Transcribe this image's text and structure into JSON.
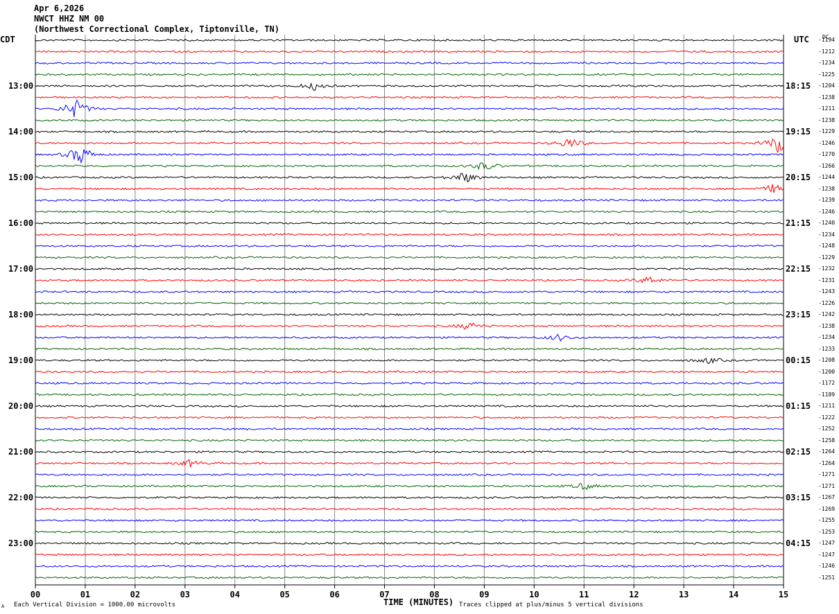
{
  "header": {
    "date": "Apr 6,2026",
    "station": "NWCT HHZ NM 00",
    "location": "(Northwest Correctional Complex, Tiptonville, TN)"
  },
  "left_axis_title": "CDT",
  "right_axis_title": "UTC",
  "dc_title": "DC",
  "footer": {
    "scale_note": "Each Vertical Division = 1000.00 microvolts",
    "clip_note": "Traces clipped at plus/minus 5 vertical divisions",
    "corner_mark": "A"
  },
  "colors": {
    "trace_cycle": [
      "#000000",
      "#ff0000",
      "#0000ff",
      "#006400"
    ],
    "grid": "#888888"
  },
  "chart_data": {
    "type": "line",
    "xlabel": "TIME (MINUTES)",
    "x_ticks": [
      "00",
      "01",
      "02",
      "03",
      "04",
      "05",
      "06",
      "07",
      "08",
      "09",
      "10",
      "11",
      "12",
      "13",
      "14",
      "15"
    ],
    "xlim": [
      0,
      15
    ],
    "rows": 48,
    "minutes_per_row": 15,
    "left_hour_labels": [
      "13:00",
      "14:00",
      "15:00",
      "16:00",
      "17:00",
      "18:00",
      "19:00",
      "20:00",
      "21:00",
      "22:00",
      "23:00"
    ],
    "right_hour_labels": [
      "18:15",
      "19:15",
      "20:15",
      "21:15",
      "22:15",
      "23:15",
      "00:15",
      "01:15",
      "02:15",
      "03:15",
      "04:15"
    ],
    "first_hour_row": 4,
    "dc_offsets": [
      -1194,
      -1212,
      -1234,
      -1225,
      -1204,
      -1238,
      -1211,
      -1238,
      -1229,
      -1246,
      -1270,
      -1266,
      -1244,
      -1238,
      -1239,
      -1246,
      -1240,
      -1234,
      -1248,
      -1229,
      -1232,
      -1231,
      -1243,
      -1226,
      -1242,
      -1238,
      -1234,
      -1233,
      -1208,
      -1200,
      -1172,
      -1189,
      -1211,
      -1222,
      -1252,
      -1258,
      -1264,
      -1264,
      -1271,
      -1271,
      -1267,
      -1269,
      -1255,
      -1253,
      -1247,
      -1247,
      -1246,
      -1251
    ],
    "events": [
      {
        "row": 6,
        "minute": 0.8,
        "amp": 1.0
      },
      {
        "row": 10,
        "minute": 0.9,
        "amp": 1.0
      },
      {
        "row": 9,
        "minute": 10.7,
        "amp": 0.55
      },
      {
        "row": 9,
        "minute": 14.9,
        "amp": 1.0
      },
      {
        "row": 12,
        "minute": 8.6,
        "amp": 0.6
      },
      {
        "row": 11,
        "minute": 9.0,
        "amp": 0.45
      },
      {
        "row": 4,
        "minute": 5.6,
        "amp": 0.4
      },
      {
        "row": 21,
        "minute": 12.3,
        "amp": 0.4
      },
      {
        "row": 13,
        "minute": 14.8,
        "amp": 0.45
      },
      {
        "row": 25,
        "minute": 8.7,
        "amp": 0.4
      },
      {
        "row": 26,
        "minute": 10.5,
        "amp": 0.35
      },
      {
        "row": 28,
        "minute": 13.5,
        "amp": 0.3
      },
      {
        "row": 37,
        "minute": 3.1,
        "amp": 0.35
      },
      {
        "row": 39,
        "minute": 11.0,
        "amp": 0.35
      }
    ]
  }
}
